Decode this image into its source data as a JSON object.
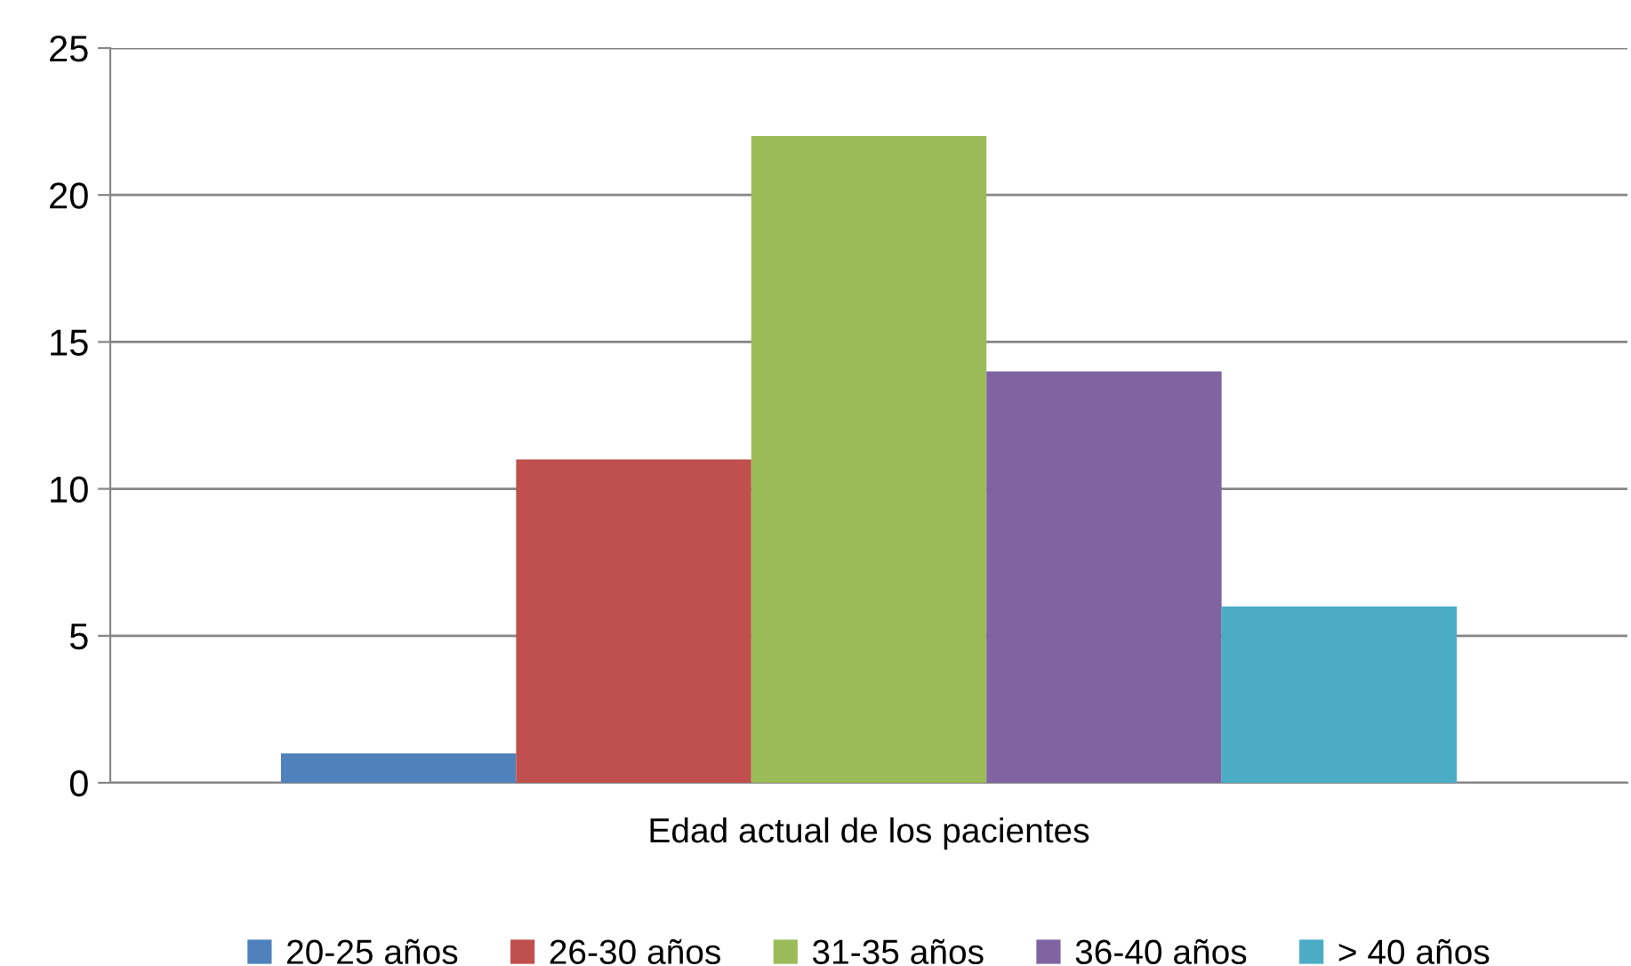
{
  "chart_data": {
    "type": "bar",
    "categories": [
      "Edad actual de los pacientes"
    ],
    "series": [
      {
        "name": "20-25 años",
        "color": "#4f81bd",
        "values": [
          1
        ]
      },
      {
        "name": "26-30 años",
        "color": "#c0504d",
        "values": [
          11
        ]
      },
      {
        "name": "31-35 años",
        "color": "#9bbb59",
        "values": [
          22
        ]
      },
      {
        "name": "36-40 años",
        "color": "#8064a2",
        "values": [
          14
        ]
      },
      {
        "name": "> 40 años",
        "color": "#4bacc6",
        "values": [
          6
        ]
      }
    ],
    "ylim": [
      0,
      25
    ],
    "yticks": [
      0,
      5,
      10,
      15,
      20,
      25
    ],
    "grid": "y",
    "legend": "bottom"
  }
}
